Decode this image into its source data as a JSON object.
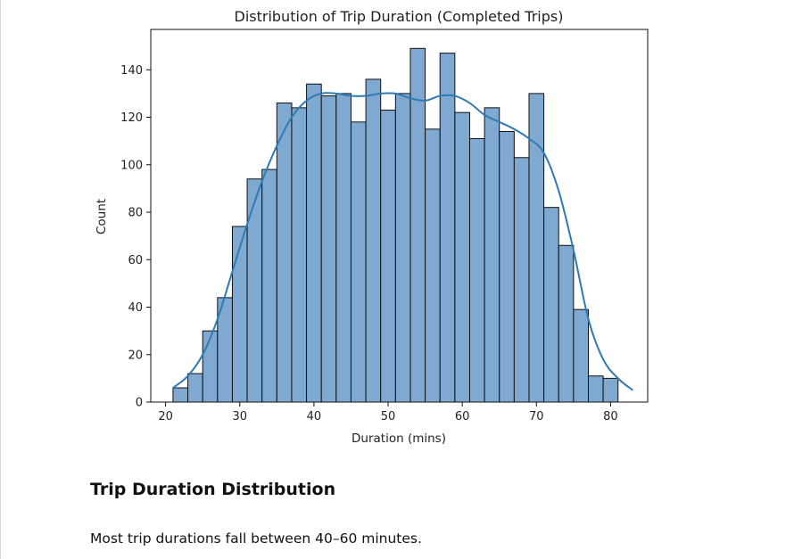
{
  "chart_data": {
    "type": "bar",
    "title": "Distribution of Trip Duration (Completed Trips)",
    "xlabel": "Duration (mins)",
    "ylabel": "Count",
    "xlim": [
      18,
      85
    ],
    "ylim": [
      0,
      157
    ],
    "xticks": [
      20,
      30,
      40,
      50,
      60,
      70,
      80
    ],
    "yticks": [
      0,
      20,
      40,
      60,
      80,
      100,
      120,
      140
    ],
    "bin_start": 21,
    "bin_width": 2,
    "counts": [
      6,
      12,
      30,
      44,
      74,
      94,
      98,
      126,
      124,
      134,
      129,
      130,
      118,
      136,
      123,
      130,
      149,
      115,
      147,
      122,
      111,
      124,
      114,
      103,
      130,
      82,
      66,
      39,
      11,
      10
    ],
    "kde": {
      "x": [
        21,
        23,
        25,
        27,
        29,
        31,
        33,
        35,
        37,
        39,
        41,
        43,
        45,
        47,
        49,
        51,
        53,
        55,
        57,
        59,
        61,
        63,
        65,
        67,
        69,
        71,
        73,
        75,
        77,
        79,
        81,
        83
      ],
      "y": [
        6,
        11,
        20,
        35,
        55,
        75,
        93,
        108,
        120,
        127,
        130,
        130,
        129,
        129,
        130,
        130,
        128,
        127,
        129,
        129,
        126,
        121,
        118,
        115,
        111,
        105,
        89,
        64,
        35,
        18,
        10,
        5
      ]
    },
    "grid": false,
    "colors": {
      "bar_fill": "#7fa9d0",
      "bar_edge": "#111111",
      "kde": "#2f7ab3"
    }
  },
  "section": {
    "heading": "Trip Duration Distribution",
    "text": "Most trip durations fall between 40–60 minutes."
  }
}
